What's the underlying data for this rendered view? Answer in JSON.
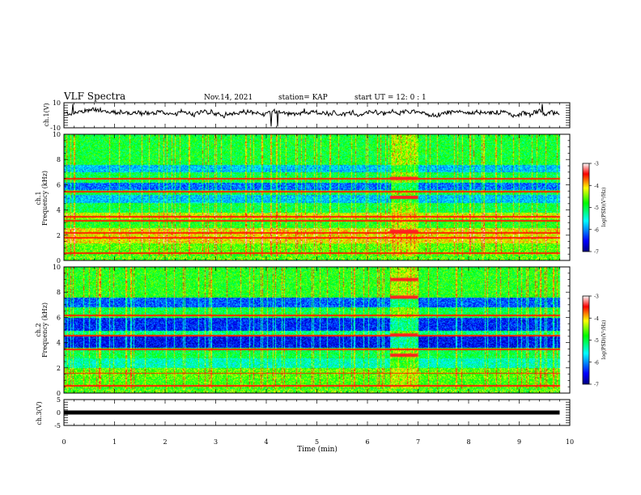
{
  "header": {
    "title": "VLF Spectra",
    "date": "Nov.14, 2021",
    "station": "station= KAP",
    "start": "start  UT =   12: 0  : 1"
  },
  "chart_data": [
    {
      "type": "line",
      "panel": "ch1-waveform",
      "ylabel": "ch.1(V)",
      "ylim": [
        -10,
        10
      ],
      "ytick_labels": [
        "10",
        "-10"
      ],
      "xlim": [
        0,
        10
      ],
      "grid": false,
      "description_values": "noisy waveform centred near +2 V with occasional spikes"
    },
    {
      "type": "heatmap",
      "panel": "ch1-spectrogram",
      "ylabel_line1": "ch.1",
      "ylabel_line2": "Frequency (kHz)",
      "ylim": [
        0,
        10
      ],
      "ytick_labels": [
        "0",
        "2",
        "4",
        "6",
        "8",
        "10"
      ],
      "xlim": [
        0,
        10
      ],
      "x_data_end_min": 9.8,
      "burst_interval_min": [
        6.45,
        7.0
      ],
      "colorbar": {
        "label": "log(PSD)(V²/Hz)",
        "range": [
          -7,
          -3
        ],
        "tick_labels": [
          "-3",
          "-4",
          "-5",
          "-6",
          "-7"
        ]
      },
      "bands": [
        {
          "f0": 0.0,
          "f1": 0.4,
          "level": 0.55
        },
        {
          "f0": 0.4,
          "f1": 1.4,
          "level": 0.6
        },
        {
          "f0": 1.4,
          "f1": 2.6,
          "level": 0.72
        },
        {
          "f0": 2.6,
          "f1": 3.3,
          "level": 0.55
        },
        {
          "f0": 3.3,
          "f1": 3.8,
          "level": 0.68
        },
        {
          "f0": 3.8,
          "f1": 4.6,
          "level": 0.5
        },
        {
          "f0": 4.6,
          "f1": 5.2,
          "level": 0.3
        },
        {
          "f0": 5.2,
          "f1": 5.6,
          "level": 0.5
        },
        {
          "f0": 5.6,
          "f1": 6.2,
          "level": 0.22
        },
        {
          "f0": 6.2,
          "f1": 7.0,
          "level": 0.5
        },
        {
          "f0": 7.0,
          "f1": 7.6,
          "level": 0.3
        },
        {
          "f0": 7.6,
          "f1": 10.0,
          "level": 0.52
        }
      ],
      "lines_khz": [
        0.6,
        1.8,
        2.2,
        3.2,
        3.5,
        5.5,
        6.5
      ]
    },
    {
      "type": "heatmap",
      "panel": "ch2-spectrogram",
      "ylabel_line1": "ch.2",
      "ylabel_line2": "Frequency (kHz)",
      "ylim": [
        0,
        10
      ],
      "ytick_labels": [
        "0",
        "2",
        "4",
        "6",
        "8",
        "10"
      ],
      "xlim": [
        0,
        10
      ],
      "x_data_end_min": 9.8,
      "burst_interval_min": [
        6.45,
        7.0
      ],
      "colorbar": {
        "label": "log(PSD)(V²/Hz)",
        "range": [
          -7,
          -3
        ],
        "tick_labels": [
          "-3",
          "-4",
          "-5",
          "-6",
          "-7"
        ]
      },
      "bands": [
        {
          "f0": 0.0,
          "f1": 0.4,
          "level": 0.55
        },
        {
          "f0": 0.4,
          "f1": 1.2,
          "level": 0.58
        },
        {
          "f0": 1.2,
          "f1": 2.0,
          "level": 0.6
        },
        {
          "f0": 2.0,
          "f1": 2.8,
          "level": 0.4
        },
        {
          "f0": 2.8,
          "f1": 3.6,
          "level": 0.5
        },
        {
          "f0": 3.6,
          "f1": 4.5,
          "level": 0.12
        },
        {
          "f0": 4.5,
          "f1": 5.0,
          "level": 0.45
        },
        {
          "f0": 5.0,
          "f1": 6.0,
          "level": 0.15
        },
        {
          "f0": 6.0,
          "f1": 6.8,
          "level": 0.5
        },
        {
          "f0": 6.8,
          "f1": 7.6,
          "level": 0.2
        },
        {
          "f0": 7.6,
          "f1": 10.0,
          "level": 0.55
        }
      ],
      "lines_khz": [
        0.6,
        1.6,
        3.5,
        4.6,
        6.2
      ]
    },
    {
      "type": "line",
      "panel": "ch3-waveform",
      "ylabel": "ch.3(V)",
      "ylim": [
        -5,
        5
      ],
      "ytick_labels": [
        "5",
        "0",
        "-5"
      ],
      "xlim": [
        0,
        10
      ],
      "xlabel": "Time  (min)",
      "xtick_labels": [
        "0",
        "1",
        "2",
        "3",
        "4",
        "5",
        "6",
        "7",
        "8",
        "9",
        "10"
      ],
      "constant_value_v": 0
    }
  ],
  "colors": {
    "axes": "#000000",
    "trace": "#000000",
    "colormap": [
      "#00008b",
      "#0000ff",
      "#00ffff",
      "#00ff00",
      "#ffff00",
      "#ff0000",
      "#ffffff"
    ]
  }
}
